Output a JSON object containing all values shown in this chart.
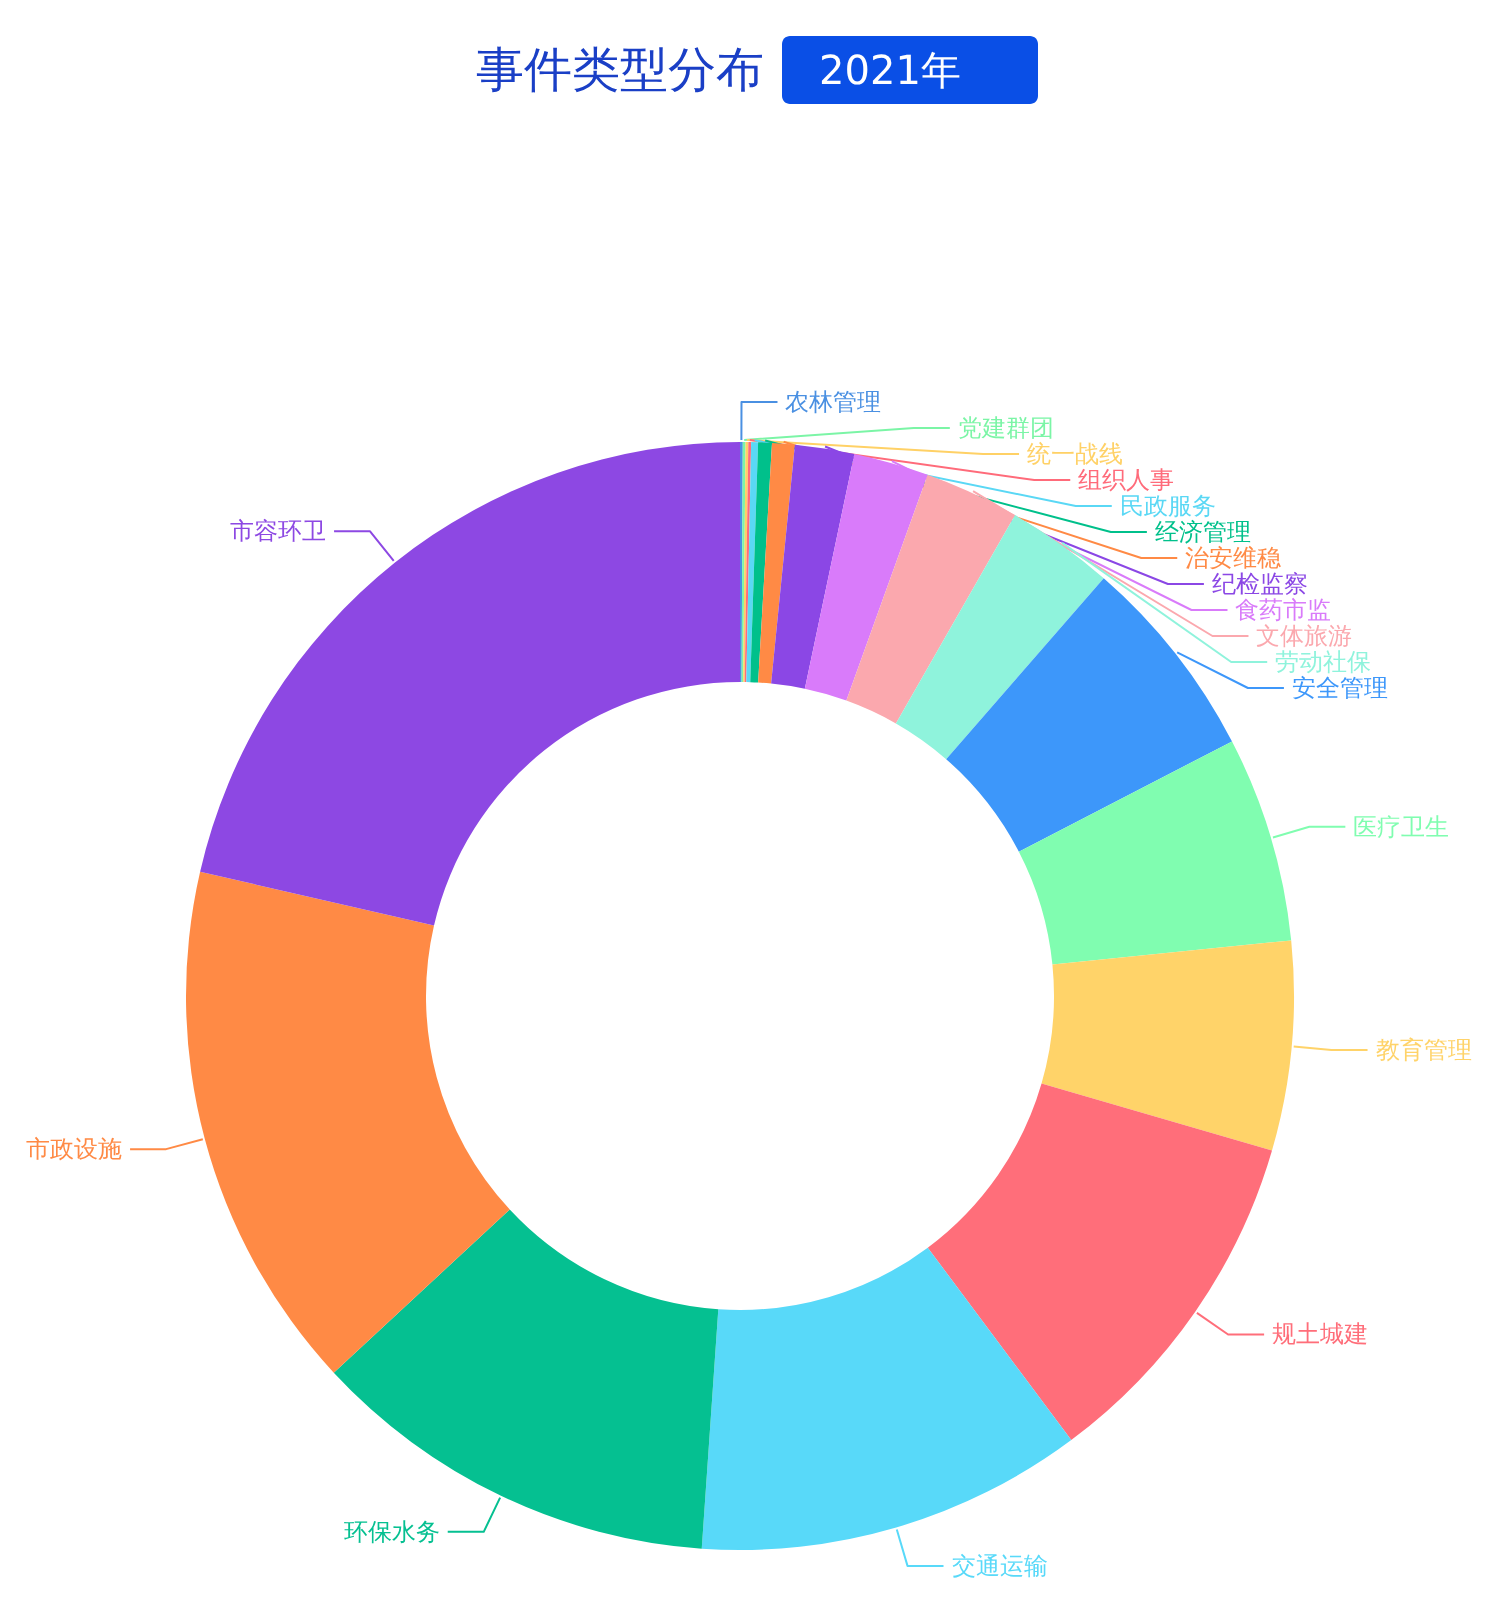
{
  "chart_data": {
    "type": "donut",
    "title": "事件类型分布",
    "subtitle": "2021年",
    "categories": [
      "农林管理",
      "党建群团",
      "统一战线",
      "组织人事",
      "民政服务",
      "经济管理",
      "治安维稳",
      "纪检监察",
      "食药市监",
      "文体旅游",
      "劳动社保",
      "安全管理",
      "医疗卫生",
      "教育管理",
      "规土城建",
      "交通运输",
      "环保水务",
      "市政设施",
      "市容环卫"
    ],
    "values": [
      0.08,
      0.08,
      0.08,
      0.08,
      0.2,
      0.4,
      0.66,
      1.73,
      2.19,
      2.77,
      3.13,
      6.0,
      6.0,
      6.1,
      10.3,
      11.3,
      12.0,
      15.5,
      21.4
    ],
    "colors": [
      "#4a90e2",
      "#7bf5a6",
      "#ffd166",
      "#ff6b7a",
      "#5ad8f5",
      "#00c08b",
      "#ff8a45",
      "#8b47e5",
      "#d97bfa",
      "#fba8ae",
      "#8ff3dc",
      "#3d97fa",
      "#80fdb0",
      "#ffd369",
      "#ff6e7a",
      "#58d9f9",
      "#05c091",
      "#ff8a45",
      "#8d48e3"
    ]
  }
}
